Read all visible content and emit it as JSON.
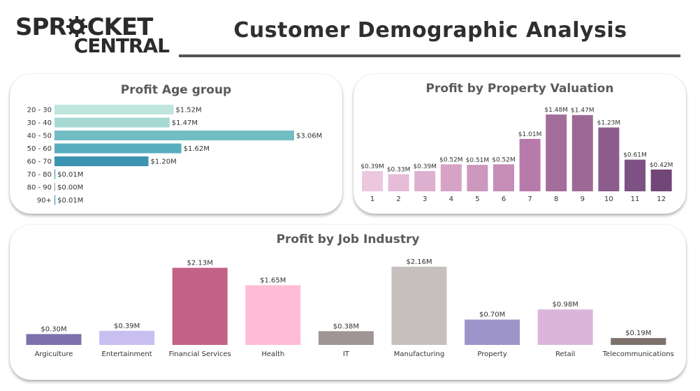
{
  "header": {
    "logo_line1": "SPROCKET",
    "logo_line2": "CENTRAL",
    "title": "Customer Demographic Analysis"
  },
  "chart_data": [
    {
      "type": "bar",
      "orientation": "horizontal",
      "title": "Profit Age group",
      "categories": [
        "20 - 30",
        "30 - 40",
        "40 - 50",
        "50 - 60",
        "60 - 70",
        "70 - 80",
        "80 - 90",
        "90+"
      ],
      "values": [
        1.52,
        1.47,
        3.06,
        1.62,
        1.2,
        0.01,
        0.0,
        0.01
      ],
      "labels": [
        "$1.52M",
        "$1.47M",
        "$3.06M",
        "$1.62M",
        "$1.20M",
        "$0.01M",
        "$0.00M",
        "$0.01M"
      ],
      "colors": [
        "#bfe6dc",
        "#a6d8d3",
        "#72bcc4",
        "#58aebf",
        "#3d94b1",
        "#3d94b1",
        "#3d94b1",
        "#3d94b1"
      ],
      "unit": "$M"
    },
    {
      "type": "bar",
      "title": "Profit by Property Valuation",
      "categories": [
        "1",
        "2",
        "3",
        "4",
        "5",
        "6",
        "7",
        "8",
        "9",
        "10",
        "11",
        "12"
      ],
      "values": [
        0.39,
        0.33,
        0.39,
        0.52,
        0.51,
        0.52,
        1.01,
        1.48,
        1.47,
        1.23,
        0.61,
        0.42
      ],
      "labels": [
        "$0.39M",
        "$0.33M",
        "$0.39M",
        "$0.52M",
        "$0.51M",
        "$0.52M",
        "$1.01M",
        "$1.48M",
        "$1.47M",
        "$1.23M",
        "$0.61M",
        "$0.42M"
      ],
      "colors": [
        "#ebc8e0",
        "#e6bcd8",
        "#ddb0cf",
        "#d6a3c7",
        "#cd98bd",
        "#c68db7",
        "#b87aab",
        "#a46e9a",
        "#9c6997",
        "#8d5c8e",
        "#7e5184",
        "#724677"
      ],
      "unit": "$M"
    },
    {
      "type": "bar",
      "title": "Profit by Job Industry",
      "categories": [
        "Argiculture",
        "Entertainment",
        "Financial Services",
        "Health",
        "IT",
        "Manufacturing",
        "Property",
        "Retail",
        "Telecommunications"
      ],
      "values": [
        0.3,
        0.39,
        2.13,
        1.65,
        0.38,
        2.16,
        0.7,
        0.98,
        0.19
      ],
      "labels": [
        "$0.30M",
        "$0.39M",
        "$2.13M",
        "$1.65M",
        "$0.38M",
        "$2.16M",
        "$0.70M",
        "$0.98M",
        "$0.19M"
      ],
      "colors": [
        "#7e70ac",
        "#c8bff0",
        "#c26286",
        "#ffbcd6",
        "#a09594",
        "#c5c0be",
        "#9d94ca",
        "#dbb6da",
        "#7e716c"
      ],
      "unit": "$M"
    }
  ]
}
